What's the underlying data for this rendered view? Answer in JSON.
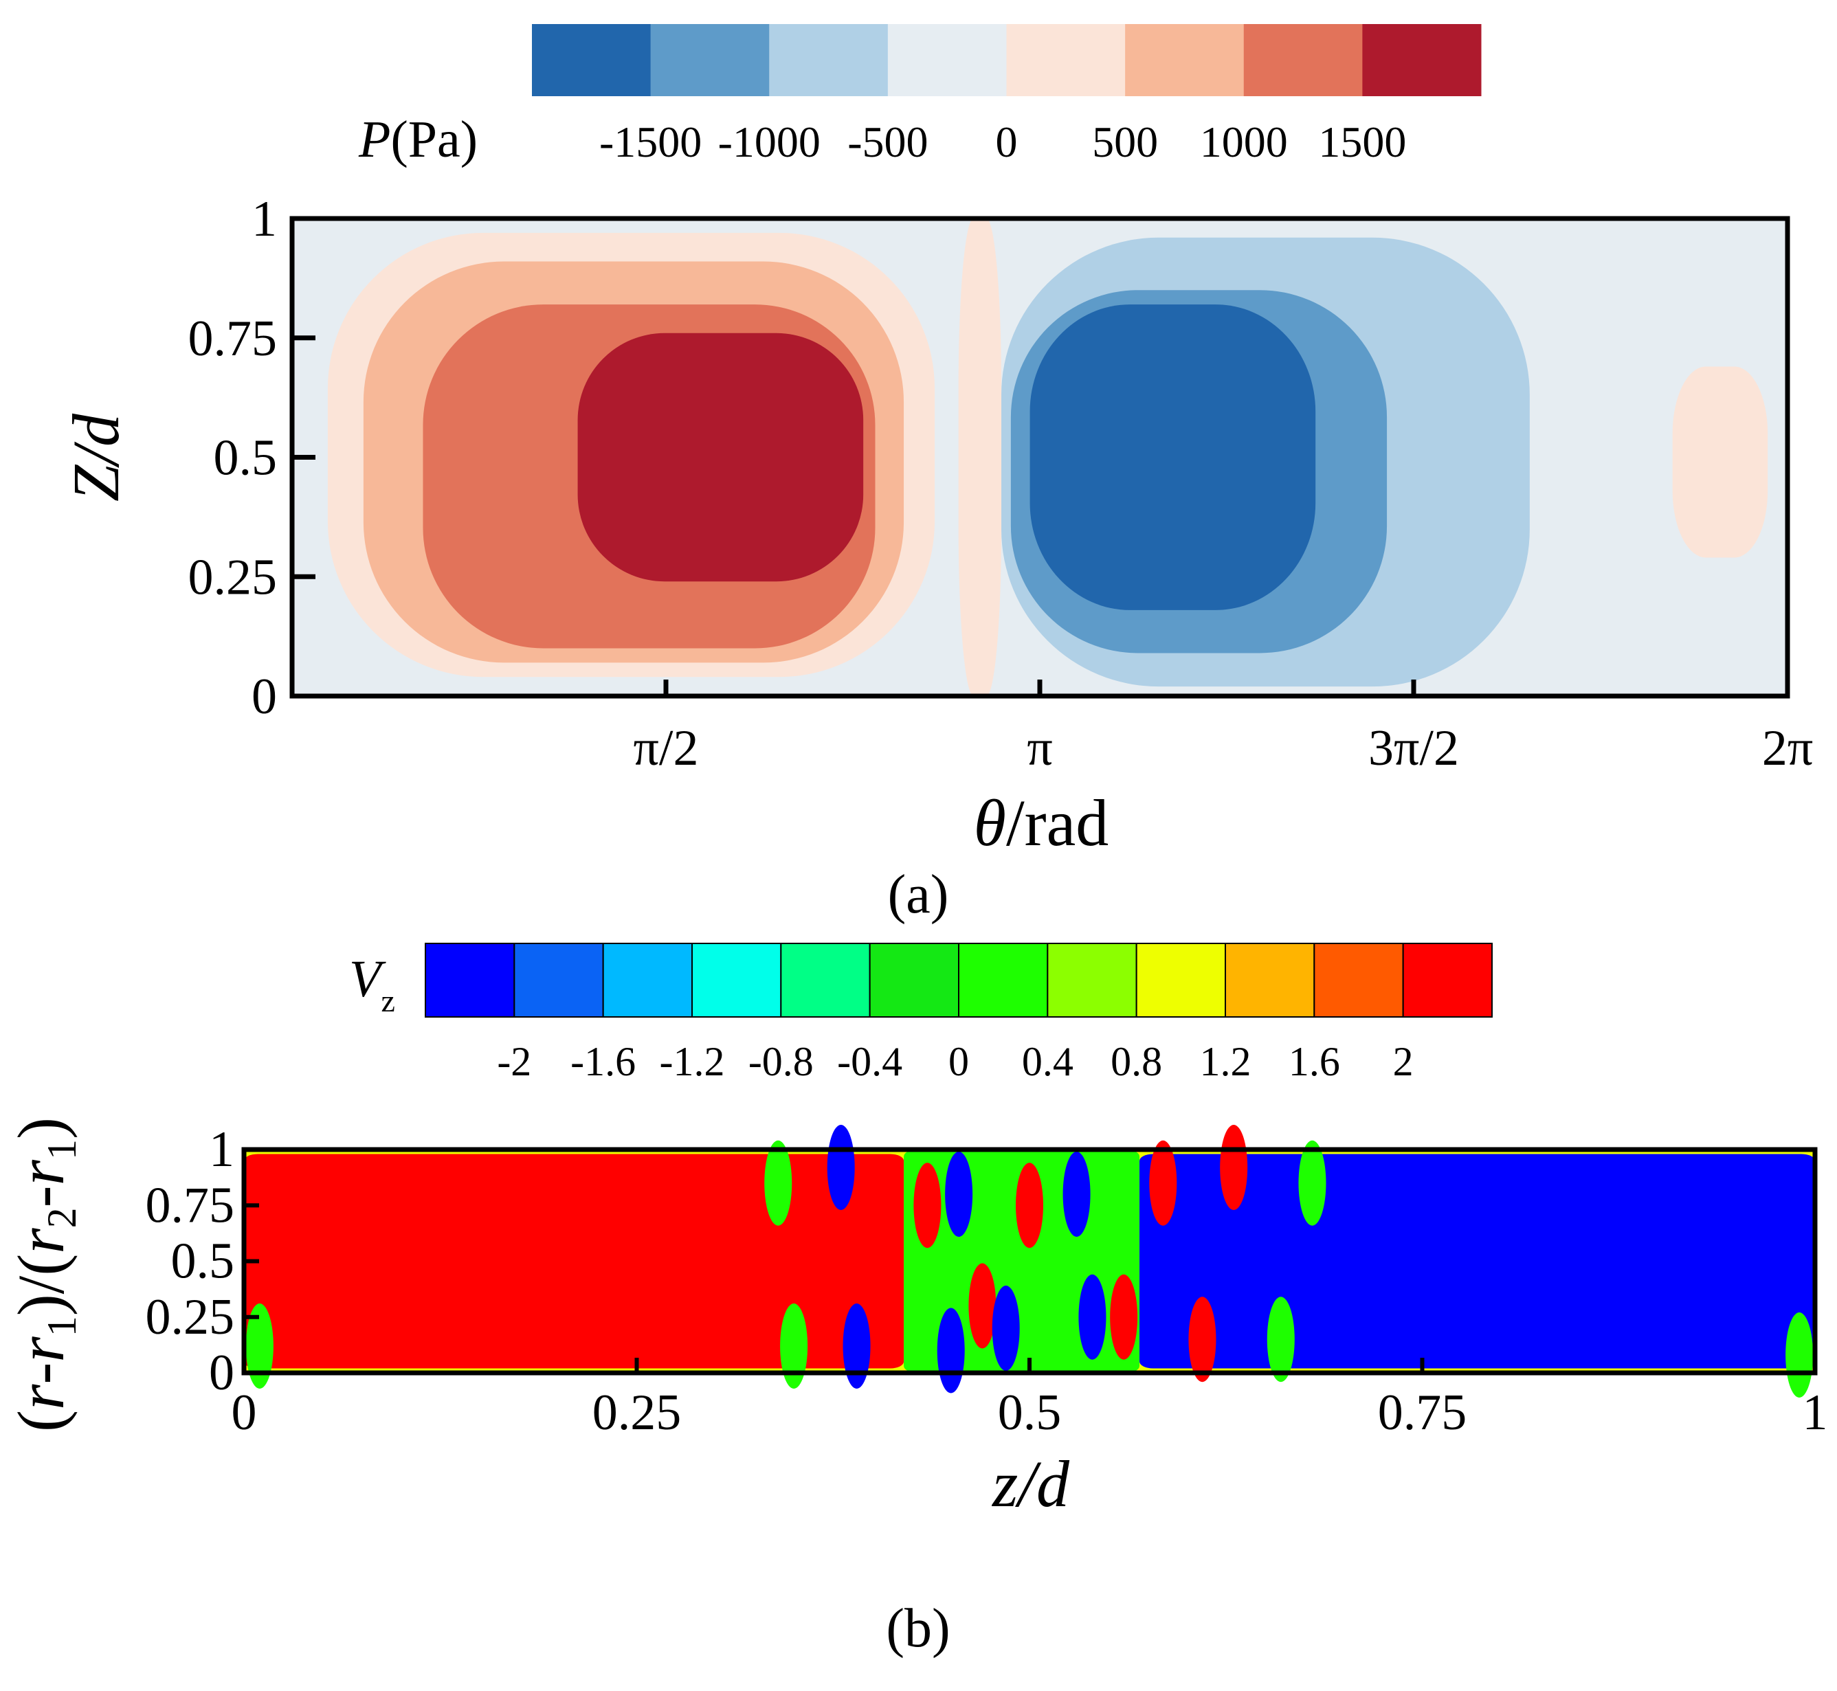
{
  "chart_data": [
    {
      "type": "heatmap",
      "panel_label": "(a)",
      "colorbar": {
        "title_var": "P",
        "title_unit": "(Pa)",
        "levels": [
          -1500,
          -1000,
          -500,
          0,
          500,
          1000,
          1500
        ],
        "tick_labels": [
          "-1500",
          "-1000",
          "-500",
          "0",
          "500",
          "1000",
          "1500"
        ],
        "colors": [
          "#2166ac",
          "#5e9bc9",
          "#b0d0e6",
          "#e6edf2",
          "#fbe4d8",
          "#f7b898",
          "#e2735a",
          "#ae1a2d"
        ]
      },
      "xlabel_var": "θ",
      "xlabel_unit": "/rad",
      "ylabel": "Z/d",
      "xlim": [
        0,
        6.2832
      ],
      "ylim": [
        0,
        1
      ],
      "xticks": [
        1.5708,
        3.1416,
        4.7124,
        6.2832
      ],
      "xtick_labels": [
        "π/2",
        "π",
        "3π/2",
        "2π"
      ],
      "yticks": [
        0,
        0.25,
        0.5,
        0.75,
        1
      ],
      "ytick_labels": [
        "0",
        "0.25",
        "0.5",
        "0.75",
        "1"
      ],
      "background_level": 3,
      "regions": [
        {
          "level": 4,
          "theta_range": [
            0.15,
            2.7
          ],
          "z_range": [
            0.04,
            0.97
          ]
        },
        {
          "level": 5,
          "theta_range": [
            0.3,
            2.57
          ],
          "z_range": [
            0.07,
            0.91
          ]
        },
        {
          "level": 6,
          "theta_range": [
            0.55,
            2.45
          ],
          "z_range": [
            0.1,
            0.82
          ]
        },
        {
          "level": 7,
          "theta_range": [
            1.2,
            2.4
          ],
          "z_range": [
            0.24,
            0.76
          ]
        },
        {
          "level": 4,
          "theta_range": [
            2.8,
            2.98
          ],
          "z_range": [
            0.0,
            1.0
          ]
        },
        {
          "level": 2,
          "theta_range": [
            2.98,
            5.2
          ],
          "z_range": [
            0.02,
            0.96
          ]
        },
        {
          "level": 1,
          "theta_range": [
            3.02,
            4.6
          ],
          "z_range": [
            0.09,
            0.85
          ]
        },
        {
          "level": 0,
          "theta_range": [
            3.1,
            4.3
          ],
          "z_range": [
            0.18,
            0.82
          ]
        },
        {
          "level": 4,
          "theta_range": [
            5.8,
            6.2
          ],
          "z_range": [
            0.29,
            0.69
          ]
        }
      ]
    },
    {
      "type": "heatmap",
      "panel_label": "(b)",
      "colorbar": {
        "title": "V",
        "title_sub": "z",
        "levels": [
          -2,
          -1.6,
          -1.2,
          -0.8,
          -0.4,
          0,
          0.4,
          0.8,
          1.2,
          1.6,
          2
        ],
        "tick_labels": [
          "-2",
          "-1.6",
          "-1.2",
          "-0.8",
          "-0.4",
          "0",
          "0.4",
          "0.8",
          "1.2",
          "1.6",
          "2"
        ],
        "colors": [
          "#0000ff",
          "#0a63f5",
          "#00b9ff",
          "#00ffea",
          "#00ff86",
          "#14e814",
          "#1eff00",
          "#8cff00",
          "#eeff00",
          "#ffb400",
          "#ff5a00",
          "#ff0000"
        ]
      },
      "xlabel": "z/d",
      "ylabel": "(r-r1)/(r2-r1)",
      "xlim": [
        0,
        1
      ],
      "ylim": [
        0,
        1
      ],
      "xticks": [
        0,
        0.25,
        0.5,
        0.75,
        1
      ],
      "xtick_labels": [
        "0",
        "0.25",
        "0.5",
        "0.75",
        "1"
      ],
      "yticks": [
        0,
        0.25,
        0.5,
        0.75,
        1
      ],
      "ytick_labels": [
        "0",
        "0.25",
        "0.5",
        "0.75",
        "1"
      ],
      "regions": [
        {
          "level": 11,
          "z_range": [
            0.0,
            0.42
          ],
          "r_range": [
            0.02,
            0.98
          ]
        },
        {
          "level": 0,
          "z_range": [
            0.57,
            1.0
          ],
          "r_range": [
            0.02,
            0.98
          ]
        },
        {
          "level": 6,
          "z_range": [
            0.42,
            0.57
          ],
          "r_range": [
            0.0,
            1.0
          ]
        }
      ],
      "cells": [
        {
          "level": 11,
          "z": 0.435,
          "r": 0.75
        },
        {
          "level": 11,
          "z": 0.47,
          "r": 0.3
        },
        {
          "level": 11,
          "z": 0.5,
          "r": 0.75
        },
        {
          "level": 11,
          "z": 0.56,
          "r": 0.25
        },
        {
          "level": 11,
          "z": 0.585,
          "r": 0.85
        },
        {
          "level": 11,
          "z": 0.61,
          "r": 0.15
        },
        {
          "level": 11,
          "z": 0.63,
          "r": 0.92
        },
        {
          "level": 0,
          "z": 0.39,
          "r": 0.12
        },
        {
          "level": 0,
          "z": 0.38,
          "r": 0.92
        },
        {
          "level": 0,
          "z": 0.455,
          "r": 0.8
        },
        {
          "level": 0,
          "z": 0.485,
          "r": 0.2
        },
        {
          "level": 0,
          "z": 0.53,
          "r": 0.8
        },
        {
          "level": 0,
          "z": 0.54,
          "r": 0.25
        },
        {
          "level": 0,
          "z": 0.45,
          "r": 0.1
        },
        {
          "level": 6,
          "z": 0.35,
          "r": 0.12
        },
        {
          "level": 6,
          "z": 0.34,
          "r": 0.85
        },
        {
          "level": 6,
          "z": 0.66,
          "r": 0.15
        },
        {
          "level": 6,
          "z": 0.68,
          "r": 0.85
        },
        {
          "level": 6,
          "z": 0.99,
          "r": 0.08
        },
        {
          "level": 6,
          "z": 0.01,
          "r": 0.12
        }
      ]
    }
  ]
}
